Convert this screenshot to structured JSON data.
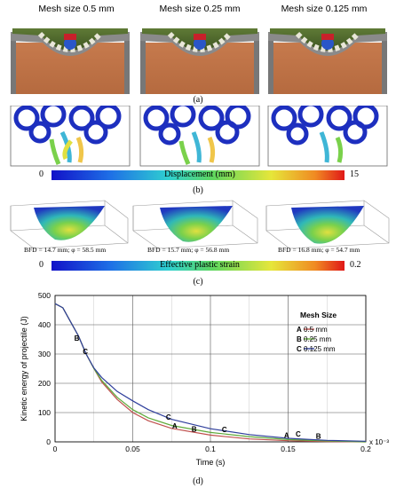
{
  "panel_a": {
    "titles": [
      "Mesh size 0.5 mm",
      "Mesh size 0.25 mm",
      "Mesh size 0.125 mm"
    ],
    "label": "(a)"
  },
  "panel_b": {
    "colorbar_title": "Displacement (mm)",
    "min": "0",
    "max": "15",
    "label": "(b)"
  },
  "panel_c": {
    "bfd_labels": [
      "BFD = 14.7 mm; φ = 58.5 mm",
      "BFD = 15.7 mm; φ = 56.8 mm",
      "BFD = 16.8 mm; φ = 54.7 mm"
    ],
    "colorbar_title": "Effective plastic strain",
    "min": "0",
    "max": "0.2",
    "label": "(c)"
  },
  "panel_d": {
    "label": "(d)"
  },
  "chart_data": {
    "type": "line",
    "title": "",
    "xlabel": "Time (s)",
    "ylabel": "Kinetic energy of projectile (J)",
    "x_multiplier_label": "x 10⁻³",
    "xlim": [
      0,
      0.2
    ],
    "ylim": [
      0,
      500
    ],
    "x_ticks": [
      "0",
      "0.05",
      "0.1",
      "0.15",
      "0.2"
    ],
    "y_ticks": [
      "0",
      "100",
      "200",
      "300",
      "400",
      "500"
    ],
    "grid": true,
    "legend_title": "Mesh Size",
    "legend_position": "right",
    "series": [
      {
        "name": "0.5 mm",
        "marker": "A",
        "color": "#c0504d",
        "x": [
          0,
          0.005,
          0.01,
          0.015,
          0.02,
          0.025,
          0.03,
          0.04,
          0.05,
          0.06,
          0.075,
          0.1,
          0.125,
          0.15,
          0.175,
          0.2
        ],
        "y": [
          472,
          458,
          410,
          362,
          300,
          250,
          205,
          145,
          100,
          72,
          46,
          23,
          10,
          4,
          1,
          0
        ]
      },
      {
        "name": "0.25 mm",
        "marker": "B",
        "color": "#5faa3a",
        "x": [
          0,
          0.005,
          0.01,
          0.015,
          0.02,
          0.025,
          0.03,
          0.04,
          0.05,
          0.06,
          0.075,
          0.1,
          0.125,
          0.15,
          0.175,
          0.2
        ],
        "y": [
          472,
          458,
          410,
          362,
          300,
          250,
          210,
          152,
          110,
          82,
          56,
          32,
          18,
          8,
          3,
          0
        ]
      },
      {
        "name": "0.125 mm",
        "marker": "C",
        "color": "#2f3f9c",
        "x": [
          0,
          0.005,
          0.01,
          0.015,
          0.02,
          0.025,
          0.03,
          0.04,
          0.05,
          0.06,
          0.075,
          0.1,
          0.125,
          0.15,
          0.175,
          0.2
        ],
        "y": [
          472,
          458,
          410,
          362,
          300,
          252,
          220,
          172,
          140,
          110,
          77,
          45,
          25,
          12,
          5,
          2
        ]
      }
    ],
    "marker_points": [
      {
        "text": "B",
        "x": 0.014,
        "y": 345
      },
      {
        "text": "C",
        "x": 0.0195,
        "y": 300
      },
      {
        "text": "A",
        "x": 0.077,
        "y": 45
      },
      {
        "text": "B",
        "x": 0.0895,
        "y": 35
      },
      {
        "text": "C",
        "x": 0.073,
        "y": 76
      },
      {
        "text": "C",
        "x": 0.109,
        "y": 33
      },
      {
        "text": "A",
        "x": 0.149,
        "y": 14
      },
      {
        "text": "C",
        "x": 0.1565,
        "y": 18
      },
      {
        "text": "B",
        "x": 0.1695,
        "y": 11
      }
    ]
  }
}
